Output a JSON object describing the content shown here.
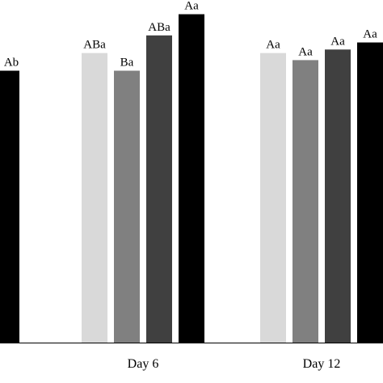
{
  "chart_data": {
    "type": "bar",
    "title": "",
    "xlabel": "",
    "ylabel": "",
    "ylim": [
      0,
      100
    ],
    "grid": false,
    "legend": "none",
    "groups": [
      {
        "label": "",
        "bars": [
          {
            "value": 77,
            "label": "Ab",
            "color": "#000000"
          }
        ]
      },
      {
        "label": "Day 6",
        "bars": [
          {
            "value": 82,
            "label": "ABa",
            "color": "#d9d9d9"
          },
          {
            "value": 77,
            "label": "Ba",
            "color": "#808080"
          },
          {
            "value": 87,
            "label": "ABa",
            "color": "#404040"
          },
          {
            "value": 93,
            "label": "Aa",
            "color": "#000000"
          }
        ]
      },
      {
        "label": "Day 12",
        "bars": [
          {
            "value": 82,
            "label": "Aa",
            "color": "#d9d9d9"
          },
          {
            "value": 80,
            "label": "Aa",
            "color": "#808080"
          },
          {
            "value": 83,
            "label": "Aa",
            "color": "#404040"
          },
          {
            "value": 85,
            "label": "Aa",
            "color": "#000000"
          }
        ]
      }
    ]
  }
}
